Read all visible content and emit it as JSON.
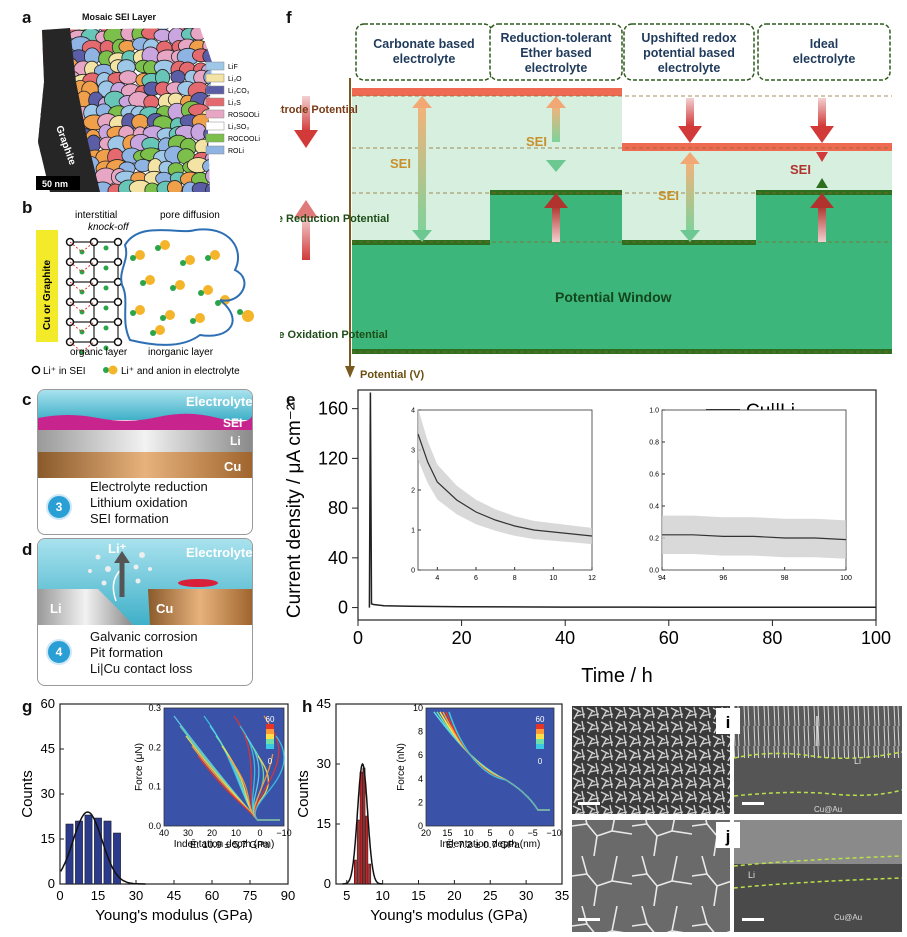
{
  "panels": {
    "a": {
      "label": "a",
      "title": "Mosaic SEI Layer",
      "side_label": "Graphite",
      "scale_bar": "50 nm",
      "legend": [
        {
          "text": "LiF",
          "color": "#9fc7e8"
        },
        {
          "text": "Li₂O",
          "color": "#f3e3a4"
        },
        {
          "text": "Li₂CO₃",
          "color": "#5b5ea6"
        },
        {
          "text": "Li₂S",
          "color": "#e46a6f"
        },
        {
          "text": "ROSOOLi",
          "color": "#e7a7c4"
        },
        {
          "text": "Li₂SO₃",
          "color": "#ffffff"
        },
        {
          "text": "ROCOOLi",
          "color": "#7cbf4a"
        },
        {
          "text": "ROLi",
          "color": "#8fb3e3"
        }
      ]
    },
    "b": {
      "label": "b",
      "cu_label": "Cu or Graphite",
      "interstitial": "interstitial",
      "knockoff": "knock-off",
      "pore": "pore diffusion",
      "organic": "organic layer",
      "inorganic": "inorganic layer",
      "legend1": "Li⁺ in SEI",
      "legend2": "Li⁺ and anion in electrolyte"
    },
    "c": {
      "label": "c",
      "electrolyte": "Electrolyte",
      "sei": "SEI",
      "li": "Li",
      "cu": "Cu",
      "step": "3",
      "lines": [
        "Electrolyte reduction",
        "Lithium oxidation",
        "SEI formation"
      ]
    },
    "d": {
      "label": "d",
      "electrolyte": "Electrolyte",
      "liplus": "Li⁺",
      "li": "Li",
      "cu": "Cu",
      "step": "4",
      "lines": [
        "Galvanic corrosion",
        "Pit formation",
        "Li|Cu contact loss"
      ]
    },
    "f": {
      "label": "f",
      "headers": [
        "Carbonate based electrolyte",
        "Reduction-tolerant Ether based electrolyte",
        "Upshifted redox potential based electrolyte",
        "Ideal electrolyte"
      ],
      "left_labels": [
        "Electrode Potential",
        "Electrolyte Reduction Potential",
        "Electrolyte Oxidation Potential"
      ],
      "sei": "SEI",
      "window": "Potential Window",
      "axis": "Potential (V)"
    },
    "e": {
      "label": "e"
    },
    "g": {
      "label": "g",
      "annotation": "Ē: 10.9 ± 5.7 GPa"
    },
    "h": {
      "label": "h",
      "annotation": "Ē: 7.2 ± 0.7 GPa"
    },
    "i": {
      "label": "i",
      "li": "Li",
      "cuau": "Cu@Au"
    },
    "j": {
      "label": "j",
      "li": "Li",
      "cuau": "Cu@Au"
    }
  },
  "chart_data": [
    {
      "id": "e",
      "type": "line",
      "title": "",
      "xlabel": "Time / h",
      "ylabel": "Current density / μA cm⁻²",
      "xlim": [
        0,
        100
      ],
      "ylim": [
        -10,
        175
      ],
      "xticks": [
        "0",
        "20",
        "40",
        "60",
        "80",
        "100"
      ],
      "yticks": [
        "0",
        "40",
        "80",
        "120",
        "160"
      ],
      "legend": "Cu||Li",
      "legend_sub": "p",
      "series": [
        {
          "name": "Cu||Li_p",
          "x": [
            2.2,
            2.4,
            2.6,
            3,
            5,
            10,
            20,
            40,
            60,
            80,
            100
          ],
          "y": [
            0,
            175,
            3,
            2.5,
            1.5,
            1.1,
            0.6,
            0.4,
            0.3,
            0.25,
            0.2
          ]
        }
      ],
      "insets": [
        {
          "xlim": [
            3,
            12
          ],
          "ylim": [
            0,
            4
          ],
          "xticks": [
            "4",
            "6",
            "8",
            "10",
            "12"
          ],
          "yticks": [
            "0",
            "1",
            "2",
            "3",
            "4"
          ],
          "x": [
            3,
            3.5,
            4,
            5,
            6,
            7,
            8,
            9,
            10,
            11,
            12
          ],
          "y": [
            3.4,
            2.7,
            2.2,
            1.75,
            1.45,
            1.25,
            1.1,
            1.0,
            0.95,
            0.9,
            0.85
          ]
        },
        {
          "xlim": [
            94,
            100
          ],
          "ylim": [
            0,
            1
          ],
          "xticks": [
            "94",
            "96",
            "98",
            "100"
          ],
          "yticks": [
            "0.0",
            "0.2",
            "0.4",
            "0.6",
            "0.8",
            "1.0"
          ],
          "x": [
            94,
            95,
            96,
            97,
            98,
            99,
            100
          ],
          "y": [
            0.22,
            0.22,
            0.21,
            0.21,
            0.2,
            0.2,
            0.19
          ]
        }
      ]
    },
    {
      "id": "g",
      "type": "bar",
      "xlabel": "Young's modulus (GPa)",
      "ylabel": "Counts",
      "xlim": [
        0,
        90
      ],
      "ylim": [
        0,
        60
      ],
      "xticks": [
        "0",
        "15",
        "30",
        "45",
        "60",
        "75",
        "90"
      ],
      "yticks": [
        "0",
        "15",
        "30",
        "45",
        "60"
      ],
      "bins": [
        3.75,
        7.5,
        11.25,
        15,
        18.75,
        22.5
      ],
      "values": [
        20,
        21,
        23,
        22,
        21,
        17
      ],
      "fit_mean": 10.9,
      "fit_sd": 5.7,
      "fit_peak": 24,
      "inset": {
        "xlabel": "Indentation depth (nm)",
        "ylabel": "Force (μN)",
        "xticks": [
          "40",
          "30",
          "20",
          "10",
          "0",
          "−10"
        ],
        "yticks": [
          "0.0",
          "0.1",
          "0.2",
          "0.3"
        ],
        "cbar_max": "60",
        "cbar_min": "0"
      }
    },
    {
      "id": "h",
      "type": "bar",
      "xlabel": "Young's modulus (GPa)",
      "ylabel": "Counts",
      "xlim": [
        3.5,
        35
      ],
      "ylim": [
        0,
        45
      ],
      "xticks": [
        "5",
        "10",
        "15",
        "20",
        "25",
        "30",
        "35"
      ],
      "yticks": [
        "0",
        "15",
        "30",
        "45"
      ],
      "bins": [
        6.2,
        6.6,
        7.0,
        7.4,
        7.8,
        8.2
      ],
      "values": [
        6,
        16,
        28,
        29,
        17,
        5
      ],
      "fit_mean": 7.2,
      "fit_sd": 0.7,
      "fit_peak": 30,
      "inset": {
        "xlabel": "Indentation depth (nm)",
        "ylabel": "Force (nN)",
        "xticks": [
          "20",
          "15",
          "10",
          "5",
          "0",
          "−5",
          "−10"
        ],
        "yticks": [
          "0",
          "2",
          "4",
          "6",
          "8",
          "10"
        ],
        "cbar_max": "60",
        "cbar_min": "0"
      }
    }
  ]
}
